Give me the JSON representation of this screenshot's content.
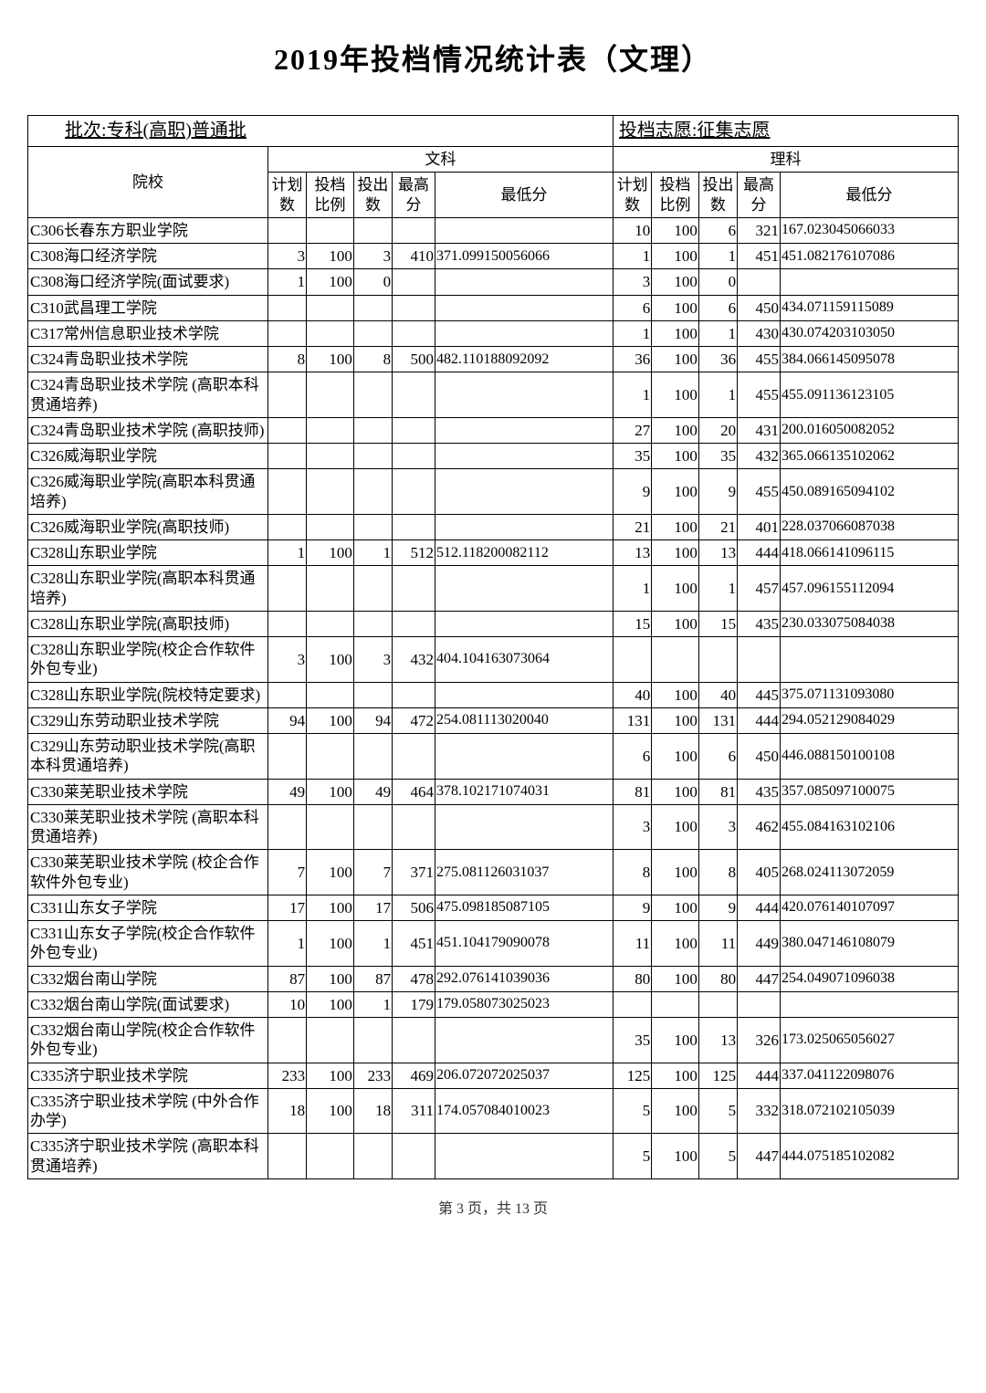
{
  "title": "2019年投档情况统计表（文理）",
  "batch_label": "批次:",
  "batch_value": "专科(高职)普通批",
  "wish_label": "投档志愿:",
  "wish_value": "征集志愿",
  "group_arts": "文科",
  "group_science": "理科",
  "cols": {
    "school": "院校",
    "plan": "计划数",
    "ratio": "投档比例",
    "out": "投出数",
    "max": "最高分",
    "min": "最低分"
  },
  "footer": "第 3 页，共 13 页",
  "rows": [
    {
      "school": "C306长春东方职业学院",
      "a": {
        "plan": "",
        "ratio": "",
        "out": "",
        "max": "",
        "min": ""
      },
      "s": {
        "plan": "10",
        "ratio": "100",
        "out": "6",
        "max": "321",
        "min": "167.023045066033"
      }
    },
    {
      "school": "C308海口经济学院",
      "a": {
        "plan": "3",
        "ratio": "100",
        "out": "3",
        "max": "410",
        "min": "371.099150056066"
      },
      "s": {
        "plan": "1",
        "ratio": "100",
        "out": "1",
        "max": "451",
        "min": "451.082176107086"
      }
    },
    {
      "school": "C308海口经济学院(面试要求)",
      "a": {
        "plan": "1",
        "ratio": "100",
        "out": "0",
        "max": "",
        "min": ""
      },
      "s": {
        "plan": "3",
        "ratio": "100",
        "out": "0",
        "max": "",
        "min": ""
      }
    },
    {
      "school": "C310武昌理工学院",
      "a": {
        "plan": "",
        "ratio": "",
        "out": "",
        "max": "",
        "min": ""
      },
      "s": {
        "plan": "6",
        "ratio": "100",
        "out": "6",
        "max": "450",
        "min": "434.071159115089"
      }
    },
    {
      "school": "C317常州信息职业技术学院",
      "a": {
        "plan": "",
        "ratio": "",
        "out": "",
        "max": "",
        "min": ""
      },
      "s": {
        "plan": "1",
        "ratio": "100",
        "out": "1",
        "max": "430",
        "min": "430.074203103050"
      }
    },
    {
      "school": "C324青岛职业技术学院",
      "a": {
        "plan": "8",
        "ratio": "100",
        "out": "8",
        "max": "500",
        "min": "482.110188092092"
      },
      "s": {
        "plan": "36",
        "ratio": "100",
        "out": "36",
        "max": "455",
        "min": "384.066145095078"
      }
    },
    {
      "school": "C324青岛职业技术学院 (高职本科贯通培养)",
      "a": {
        "plan": "",
        "ratio": "",
        "out": "",
        "max": "",
        "min": ""
      },
      "s": {
        "plan": "1",
        "ratio": "100",
        "out": "1",
        "max": "455",
        "min": "455.091136123105"
      }
    },
    {
      "school": "C324青岛职业技术学院 (高职技师)",
      "a": {
        "plan": "",
        "ratio": "",
        "out": "",
        "max": "",
        "min": ""
      },
      "s": {
        "plan": "27",
        "ratio": "100",
        "out": "20",
        "max": "431",
        "min": "200.016050082052"
      }
    },
    {
      "school": "C326威海职业学院",
      "a": {
        "plan": "",
        "ratio": "",
        "out": "",
        "max": "",
        "min": ""
      },
      "s": {
        "plan": "35",
        "ratio": "100",
        "out": "35",
        "max": "432",
        "min": "365.066135102062"
      }
    },
    {
      "school": "C326威海职业学院(高职本科贯通培养)",
      "a": {
        "plan": "",
        "ratio": "",
        "out": "",
        "max": "",
        "min": ""
      },
      "s": {
        "plan": "9",
        "ratio": "100",
        "out": "9",
        "max": "455",
        "min": "450.089165094102"
      }
    },
    {
      "school": "C326威海职业学院(高职技师)",
      "a": {
        "plan": "",
        "ratio": "",
        "out": "",
        "max": "",
        "min": ""
      },
      "s": {
        "plan": "21",
        "ratio": "100",
        "out": "21",
        "max": "401",
        "min": "228.037066087038"
      }
    },
    {
      "school": "C328山东职业学院",
      "a": {
        "plan": "1",
        "ratio": "100",
        "out": "1",
        "max": "512",
        "min": "512.118200082112"
      },
      "s": {
        "plan": "13",
        "ratio": "100",
        "out": "13",
        "max": "444",
        "min": "418.066141096115"
      }
    },
    {
      "school": "C328山东职业学院(高职本科贯通培养)",
      "a": {
        "plan": "",
        "ratio": "",
        "out": "",
        "max": "",
        "min": ""
      },
      "s": {
        "plan": "1",
        "ratio": "100",
        "out": "1",
        "max": "457",
        "min": "457.096155112094"
      }
    },
    {
      "school": "C328山东职业学院(高职技师)",
      "a": {
        "plan": "",
        "ratio": "",
        "out": "",
        "max": "",
        "min": ""
      },
      "s": {
        "plan": "15",
        "ratio": "100",
        "out": "15",
        "max": "435",
        "min": "230.033075084038"
      }
    },
    {
      "school": "C328山东职业学院(校企合作软件外包专业)",
      "a": {
        "plan": "3",
        "ratio": "100",
        "out": "3",
        "max": "432",
        "min": "404.104163073064"
      },
      "s": {
        "plan": "",
        "ratio": "",
        "out": "",
        "max": "",
        "min": ""
      }
    },
    {
      "school": "C328山东职业学院(院校特定要求)",
      "a": {
        "plan": "",
        "ratio": "",
        "out": "",
        "max": "",
        "min": ""
      },
      "s": {
        "plan": "40",
        "ratio": "100",
        "out": "40",
        "max": "445",
        "min": "375.071131093080"
      }
    },
    {
      "school": "C329山东劳动职业技术学院",
      "a": {
        "plan": "94",
        "ratio": "100",
        "out": "94",
        "max": "472",
        "min": "254.081113020040"
      },
      "s": {
        "plan": "131",
        "ratio": "100",
        "out": "131",
        "max": "444",
        "min": "294.052129084029"
      }
    },
    {
      "school": "C329山东劳动职业技术学院(高职本科贯通培养)",
      "a": {
        "plan": "",
        "ratio": "",
        "out": "",
        "max": "",
        "min": ""
      },
      "s": {
        "plan": "6",
        "ratio": "100",
        "out": "6",
        "max": "450",
        "min": "446.088150100108"
      }
    },
    {
      "school": "C330莱芜职业技术学院",
      "a": {
        "plan": "49",
        "ratio": "100",
        "out": "49",
        "max": "464",
        "min": "378.102171074031"
      },
      "s": {
        "plan": "81",
        "ratio": "100",
        "out": "81",
        "max": "435",
        "min": "357.085097100075"
      }
    },
    {
      "school": "C330莱芜职业技术学院 (高职本科贯通培养)",
      "a": {
        "plan": "",
        "ratio": "",
        "out": "",
        "max": "",
        "min": ""
      },
      "s": {
        "plan": "3",
        "ratio": "100",
        "out": "3",
        "max": "462",
        "min": "455.084163102106"
      }
    },
    {
      "school": "C330莱芜职业技术学院 (校企合作软件外包专业)",
      "a": {
        "plan": "7",
        "ratio": "100",
        "out": "7",
        "max": "371",
        "min": "275.081126031037"
      },
      "s": {
        "plan": "8",
        "ratio": "100",
        "out": "8",
        "max": "405",
        "min": "268.024113072059"
      }
    },
    {
      "school": "C331山东女子学院",
      "a": {
        "plan": "17",
        "ratio": "100",
        "out": "17",
        "max": "506",
        "min": "475.098185087105"
      },
      "s": {
        "plan": "9",
        "ratio": "100",
        "out": "9",
        "max": "444",
        "min": "420.076140107097"
      }
    },
    {
      "school": "C331山东女子学院(校企合作软件外包专业)",
      "a": {
        "plan": "1",
        "ratio": "100",
        "out": "1",
        "max": "451",
        "min": "451.104179090078"
      },
      "s": {
        "plan": "11",
        "ratio": "100",
        "out": "11",
        "max": "449",
        "min": "380.047146108079"
      }
    },
    {
      "school": "C332烟台南山学院",
      "a": {
        "plan": "87",
        "ratio": "100",
        "out": "87",
        "max": "478",
        "min": "292.076141039036"
      },
      "s": {
        "plan": "80",
        "ratio": "100",
        "out": "80",
        "max": "447",
        "min": "254.049071096038"
      }
    },
    {
      "school": "C332烟台南山学院(面试要求)",
      "a": {
        "plan": "10",
        "ratio": "100",
        "out": "1",
        "max": "179",
        "min": "179.058073025023"
      },
      "s": {
        "plan": "",
        "ratio": "",
        "out": "",
        "max": "",
        "min": ""
      }
    },
    {
      "school": "C332烟台南山学院(校企合作软件外包专业)",
      "a": {
        "plan": "",
        "ratio": "",
        "out": "",
        "max": "",
        "min": ""
      },
      "s": {
        "plan": "35",
        "ratio": "100",
        "out": "13",
        "max": "326",
        "min": "173.025065056027"
      }
    },
    {
      "school": "C335济宁职业技术学院",
      "a": {
        "plan": "233",
        "ratio": "100",
        "out": "233",
        "max": "469",
        "min": "206.072072025037"
      },
      "s": {
        "plan": "125",
        "ratio": "100",
        "out": "125",
        "max": "444",
        "min": "337.041122098076"
      }
    },
    {
      "school": "C335济宁职业技术学院 (中外合作办学)",
      "a": {
        "plan": "18",
        "ratio": "100",
        "out": "18",
        "max": "311",
        "min": "174.057084010023"
      },
      "s": {
        "plan": "5",
        "ratio": "100",
        "out": "5",
        "max": "332",
        "min": "318.072102105039"
      }
    },
    {
      "school": "C335济宁职业技术学院 (高职本科贯通培养)",
      "a": {
        "plan": "",
        "ratio": "",
        "out": "",
        "max": "",
        "min": ""
      },
      "s": {
        "plan": "5",
        "ratio": "100",
        "out": "5",
        "max": "447",
        "min": "444.075185102082"
      }
    }
  ]
}
